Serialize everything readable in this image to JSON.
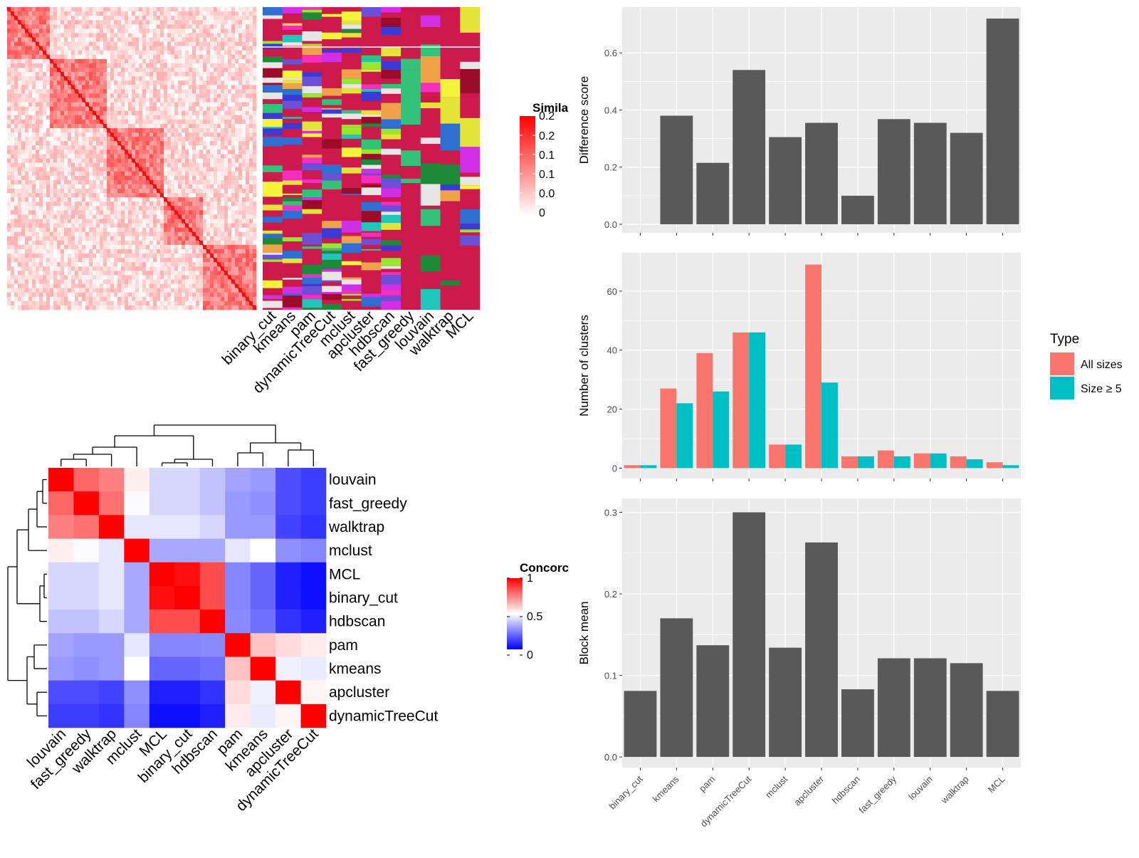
{
  "methods": [
    "binary_cut",
    "kmeans",
    "pam",
    "dynamicTreeCut",
    "mclust",
    "apcluster",
    "hdbscan",
    "fast_greedy",
    "louvain",
    "walktrap",
    "MCL"
  ],
  "heatmap_order": [
    "louvain",
    "fast_greedy",
    "walktrap",
    "mclust",
    "MCL",
    "binary_cut",
    "hdbscan",
    "pam",
    "kmeans",
    "apcluster",
    "dynamicTreeCut"
  ],
  "similarity_legend": {
    "title": "Simila",
    "ticks": [
      "0.2",
      "0.2",
      "0.1",
      "0.1",
      "0.0",
      "0"
    ]
  },
  "concordance_legend": {
    "title": "Concorc",
    "ticks": [
      "1",
      "0.5",
      "0"
    ]
  },
  "type_legend": {
    "title": "Type",
    "items": [
      "All sizes",
      "Size ≥ 5"
    ],
    "colors": [
      "#F8766D",
      "#00BFC4"
    ]
  },
  "colors": {
    "bar": "#595959",
    "panel": "#ebebeb",
    "grid": "#ffffff",
    "band_bg": "#cc1a4c"
  },
  "chart_data": [
    {
      "type": "bar",
      "categories": [
        "binary_cut",
        "kmeans",
        "pam",
        "dynamicTreeCut",
        "mclust",
        "apcluster",
        "hdbscan",
        "fast_greedy",
        "louvain",
        "walktrap",
        "MCL"
      ],
      "values": [
        0,
        0.38,
        0.215,
        0.54,
        0.305,
        0.355,
        0.1,
        0.368,
        0.355,
        0.32,
        0.72
      ],
      "ylabel": "Difference score",
      "ylim": [
        -0.03,
        0.76
      ],
      "yticks": [
        0,
        0.2,
        0.4,
        0.6
      ],
      "ytick_labels": [
        "0.0",
        "0.2",
        "0.4",
        "0.6"
      ],
      "grid": true
    },
    {
      "type": "bar",
      "categories": [
        "binary_cut",
        "kmeans",
        "pam",
        "dynamicTreeCut",
        "mclust",
        "apcluster",
        "hdbscan",
        "fast_greedy",
        "louvain",
        "walktrap",
        "MCL"
      ],
      "series": [
        {
          "name": "All sizes",
          "values": [
            1,
            27,
            39,
            46,
            8,
            69,
            4,
            6,
            5,
            4,
            2
          ]
        },
        {
          "name": "Size ≥ 5",
          "values": [
            1,
            22,
            26,
            46,
            8,
            29,
            4,
            4,
            5,
            3,
            1
          ]
        }
      ],
      "ylabel": "Number of clusters",
      "ylim": [
        -3.5,
        73
      ],
      "yticks": [
        0,
        20,
        40,
        60
      ],
      "ytick_labels": [
        "0",
        "20",
        "40",
        "60"
      ],
      "grid": true,
      "legend": "right"
    },
    {
      "type": "bar",
      "categories": [
        "binary_cut",
        "kmeans",
        "pam",
        "dynamicTreeCut",
        "mclust",
        "apcluster",
        "hdbscan",
        "fast_greedy",
        "louvain",
        "walktrap",
        "MCL"
      ],
      "values": [
        0.081,
        0.17,
        0.137,
        0.3,
        0.134,
        0.263,
        0.083,
        0.121,
        0.121,
        0.115,
        0.081
      ],
      "ylabel": "Block mean",
      "ylim": [
        -0.013,
        0.317
      ],
      "yticks": [
        0,
        0.1,
        0.2,
        0.3
      ],
      "ytick_labels": [
        "0.0",
        "0.1",
        "0.2",
        "0.3"
      ],
      "grid": true
    },
    {
      "type": "heatmap",
      "rows": [
        "louvain",
        "fast_greedy",
        "walktrap",
        "mclust",
        "MCL",
        "binary_cut",
        "hdbscan",
        "pam",
        "kmeans",
        "apcluster",
        "dynamicTreeCut"
      ],
      "columns": [
        "louvain",
        "fast_greedy",
        "walktrap",
        "mclust",
        "MCL",
        "binary_cut",
        "hdbscan",
        "pam",
        "kmeans",
        "apcluster",
        "dynamicTreeCut"
      ],
      "values": [
        [
          1.0,
          0.8,
          0.75,
          0.53,
          0.42,
          0.42,
          0.38,
          0.32,
          0.3,
          0.15,
          0.12
        ],
        [
          0.8,
          1.0,
          0.78,
          0.49,
          0.42,
          0.42,
          0.38,
          0.3,
          0.28,
          0.15,
          0.12
        ],
        [
          0.75,
          0.78,
          1.0,
          0.45,
          0.45,
          0.45,
          0.42,
          0.3,
          0.3,
          0.13,
          0.1
        ],
        [
          0.53,
          0.49,
          0.45,
          1.0,
          0.33,
          0.33,
          0.33,
          0.45,
          0.5,
          0.28,
          0.26
        ],
        [
          0.42,
          0.42,
          0.45,
          0.33,
          1.0,
          0.97,
          0.85,
          0.26,
          0.2,
          0.06,
          0.03
        ],
        [
          0.42,
          0.42,
          0.45,
          0.33,
          0.97,
          1.0,
          0.85,
          0.26,
          0.2,
          0.06,
          0.03
        ],
        [
          0.38,
          0.38,
          0.42,
          0.33,
          0.85,
          0.85,
          1.0,
          0.27,
          0.22,
          0.1,
          0.06
        ],
        [
          0.32,
          0.3,
          0.3,
          0.45,
          0.26,
          0.26,
          0.27,
          1.0,
          0.62,
          0.57,
          0.54
        ],
        [
          0.3,
          0.28,
          0.3,
          0.5,
          0.2,
          0.2,
          0.22,
          0.62,
          1.0,
          0.47,
          0.46
        ],
        [
          0.15,
          0.15,
          0.13,
          0.28,
          0.06,
          0.06,
          0.1,
          0.57,
          0.47,
          1.0,
          0.52
        ],
        [
          0.12,
          0.12,
          0.1,
          0.26,
          0.03,
          0.03,
          0.06,
          0.54,
          0.46,
          0.52,
          1.0
        ]
      ],
      "legend_title": "Concorc",
      "vlim": [
        0,
        1
      ]
    }
  ]
}
